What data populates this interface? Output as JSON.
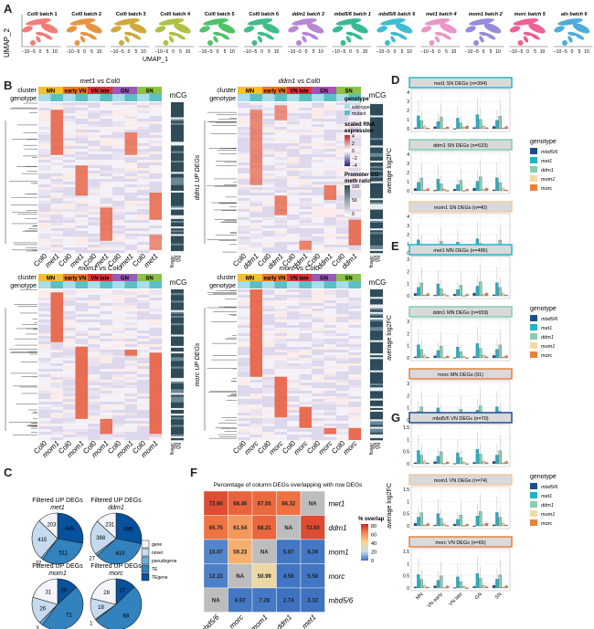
{
  "panels": {
    "A": "A",
    "B": "B",
    "C": "C",
    "D": "D",
    "E": "E",
    "F": "F",
    "G": "G"
  },
  "panelA": {
    "ylabel": "UMAP_2",
    "xlabel": "UMAP_1",
    "xticks": [
      "−10",
      "−5",
      "0",
      "5",
      "10"
    ],
    "facets": [
      {
        "label": "Col0 batch 1",
        "color": "#ef6f6c"
      },
      {
        "label": "Col0 batch 2",
        "color": "#e58a2c"
      },
      {
        "label": "Col0 batch 3",
        "color": "#c9a227"
      },
      {
        "label": "Col0 batch 4",
        "color": "#a6b930"
      },
      {
        "label": "Col0 batch 5",
        "color": "#3dbb5a"
      },
      {
        "label": "Col0 batch 6",
        "color": "#2eb57e"
      },
      {
        "label": "ddm1 batch 3",
        "color": "#b07ad0"
      },
      {
        "label": "mbd5/6 batch 1",
        "color": "#22b38a"
      },
      {
        "label": "mbd5/6 batch 6",
        "color": "#29b6cf"
      },
      {
        "label": "met1 batch 4",
        "color": "#e88cc0"
      },
      {
        "label": "mom1 batch 2",
        "color": "#8a7fd6"
      },
      {
        "label": "morc batch 5",
        "color": "#ec4f8a"
      },
      {
        "label": "aln batch 6",
        "color": "#3ba4d8"
      }
    ]
  },
  "panelB": {
    "cluster_label": "cluster",
    "genotype_label": "genotype",
    "mcg_label": "mCG",
    "clusters": [
      {
        "name": "MN",
        "color": "#f2c12e"
      },
      {
        "name": "early VN",
        "color": "#e87a2a"
      },
      {
        "name": "VN late",
        "color": "#e0323a"
      },
      {
        "name": "GN",
        "color": "#9b59b6"
      },
      {
        "name": "SN",
        "color": "#8bc34a"
      }
    ],
    "genotype_colors": {
      "wild": "#a8dde9",
      "mutant": "#5bbfc4"
    },
    "mcg_axis": [
      "flower",
      "SN",
      "VN"
    ],
    "heatmaps": [
      {
        "title_mut": "met1",
        "title_rest": " vs Col0",
        "ylabel": "met1 UP DEGs",
        "xlabels": [
          "Col0",
          "met1",
          "Col0",
          "met1",
          "Col0",
          "met1",
          "Col0",
          "met1",
          "Col0",
          "met1"
        ],
        "blocks": [
          [
            0.05,
            0.35,
            1,
            0.9
          ],
          [
            0.42,
            0.62,
            3,
            0.85
          ],
          [
            0.7,
            0.92,
            5,
            0.85
          ],
          [
            0.2,
            0.35,
            7,
            0.8
          ],
          [
            0.6,
            0.78,
            9,
            0.85
          ],
          [
            0.88,
            0.98,
            9,
            0.7
          ]
        ]
      },
      {
        "title_mut": "ddm1",
        "title_rest": " vs Col0",
        "ylabel": "ddm1 UP DEGs",
        "xlabels": [
          "Col0",
          "ddm1",
          "Col0",
          "ddm1",
          "Col0",
          "ddm1",
          "Col0",
          "ddm1",
          "Col0",
          "ddm1"
        ],
        "blocks": [
          [
            0.05,
            0.55,
            1,
            0.75
          ],
          [
            0.02,
            0.12,
            3,
            0.7
          ],
          [
            0.62,
            0.75,
            3,
            0.8
          ],
          [
            0.55,
            0.65,
            7,
            0.85
          ],
          [
            0.78,
            0.95,
            9,
            0.9
          ],
          [
            0.92,
            0.98,
            5,
            0.8
          ]
        ]
      },
      {
        "title_mut": "mom1",
        "title_rest": " vs Col0",
        "ylabel": "mom1 UP DEGs",
        "xlabels": [
          "Col0",
          "mom1",
          "Col0",
          "mom1",
          "Col0",
          "mom1",
          "Col0",
          "mom1",
          "Col0",
          "mom1"
        ],
        "blocks": [
          [
            0.02,
            0.35,
            1,
            0.95
          ],
          [
            0.38,
            0.86,
            3,
            0.95
          ],
          [
            0.4,
            0.44,
            7,
            0.9
          ],
          [
            0.42,
            0.96,
            9,
            0.95
          ],
          [
            0.86,
            0.96,
            5,
            0.9
          ]
        ]
      },
      {
        "title_mut": "morc",
        "title_rest": " vs Col0",
        "ylabel": "morc UP DEGs",
        "xlabels": [
          "Col0",
          "morc",
          "Col0",
          "morc",
          "Col0",
          "morc",
          "Col0",
          "morc",
          "Col0",
          "morc"
        ],
        "blocks": [
          [
            0.0,
            0.58,
            1,
            0.95
          ],
          [
            0.58,
            0.85,
            3,
            0.95
          ],
          [
            0.78,
            0.92,
            5,
            0.95
          ],
          [
            0.92,
            0.96,
            7,
            0.9
          ],
          [
            0.92,
            1.0,
            9,
            0.95
          ]
        ]
      }
    ]
  },
  "legendB": {
    "genotype_title": "genotype",
    "wild": "wild-type",
    "mutant": "mutant",
    "expr_title_1": "scaled RNA",
    "expr_title_2": "expression",
    "expr_ticks": [
      "4",
      "2",
      "0",
      "−2",
      "−4"
    ],
    "meth_title_1": "Promoter CG",
    "meth_title_2": "meth ratio",
    "meth_ticks": [
      "100",
      "50",
      "0"
    ]
  },
  "panelC": {
    "legend": [
      {
        "label": "gene",
        "color": "#f3f5fb"
      },
      {
        "label": "novel",
        "color": "#c6dbef"
      },
      {
        "label": "pseudogene",
        "color": "#6baed6"
      },
      {
        "label": "TE",
        "color": "#3182bd"
      },
      {
        "label": "TEgene",
        "color": "#08519c"
      }
    ],
    "pies": [
      {
        "title": "Filtered UP DEGs",
        "genotype": "met1",
        "values": {
          "TEgene": 445,
          "TE": 511,
          "pseudogene": 22,
          "novel": 415,
          "gene": 203
        }
      },
      {
        "title": "Filtered UP DEGs",
        "genotype": "ddm1",
        "values": {
          "TEgene": 495,
          "TE": 619,
          "pseudogene": 27,
          "novel": 388,
          "gene": 231
        }
      },
      {
        "title": "Filtered UP DEGs",
        "genotype": "mom1",
        "values": {
          "TEgene": 20,
          "TE": 71,
          "pseudogene": 3,
          "novel": 26,
          "gene": 31
        }
      },
      {
        "title": "Filtered UP DEGs",
        "genotype": "morc",
        "values": {
          "TEgene": 17,
          "TE": 68,
          "pseudogene": 1,
          "novel": 18,
          "gene": 28
        }
      }
    ]
  },
  "chart_data": [
    {
      "type": "heatmap",
      "title": "Percentage of column DEGs overlapping with row DEGs",
      "rows": [
        "met1",
        "ddm1",
        "mom1",
        "morc",
        "mbd5/6"
      ],
      "columns": [
        "mbd5/6",
        "morc",
        "mom1",
        "ddm1",
        "met1"
      ],
      "values": [
        [
          72.6,
          68.46,
          67.55,
          66.32,
          null
        ],
        [
          65.75,
          61.54,
          68.21,
          null,
          72.93
        ],
        [
          15.07,
          59.23,
          null,
          5.87,
          6.39
        ],
        [
          12.33,
          null,
          50.99,
          4.56,
          5.58
        ],
        [
          null,
          6.92,
          7.28,
          2.74,
          3.32
        ]
      ],
      "na_label": "NA",
      "legend_title": "% overlap",
      "legend_ticks": [
        80,
        60,
        40,
        20,
        0
      ],
      "range": [
        0,
        80
      ]
    },
    {
      "type": "box",
      "panel": "D",
      "ylabel": "average log2FC",
      "categories": [
        "MN",
        "VN early",
        "VN late",
        "GN",
        "SN"
      ],
      "facets": [
        {
          "title": "met1 SN DEGs (n=394)",
          "border": "#29b6cf",
          "ylim": [
            0,
            4
          ],
          "yticks": [
            0,
            1,
            2,
            3,
            4
          ]
        },
        {
          "title": "ddm1 SN DEGs (n=633)",
          "border": "#7fcfb0",
          "ylim": [
            0,
            4
          ],
          "yticks": [
            0,
            1,
            2,
            3,
            4
          ]
        },
        {
          "title": "mom1 SN DEGs (n=40)",
          "border": "#f3c99a",
          "ylim": [
            0,
            4
          ],
          "yticks": [
            0,
            1,
            2,
            3,
            4
          ]
        }
      ]
    },
    {
      "type": "box",
      "panel": "E",
      "ylabel": "average log2FC",
      "categories": [
        "MN",
        "VN early",
        "VN late",
        "GN",
        "SN"
      ],
      "facets": [
        {
          "title": "met1 MN DEGs (n=486)",
          "border": "#29b6cf",
          "ylim": [
            0,
            3
          ],
          "yticks": [
            0,
            1,
            2,
            3
          ]
        },
        {
          "title": "ddm1 MN DEGs (n=659)",
          "border": "#7fcfb0",
          "ylim": [
            0,
            3
          ],
          "yticks": [
            0,
            1,
            2,
            3
          ]
        },
        {
          "title": "morc MN DEGs (91)",
          "border": "#e8823a",
          "ylim": [
            0,
            3
          ],
          "yticks": [
            0,
            1,
            2,
            3
          ]
        }
      ]
    },
    {
      "type": "box",
      "panel": "G",
      "ylabel": "average log2FC",
      "categories": [
        "MN",
        "VN early",
        "VN late",
        "GN",
        "SN"
      ],
      "facets": [
        {
          "title": "mbd5/6 VN DEGs (n=70)",
          "border": "#1f4e8c",
          "ylim": [
            0,
            1.5
          ],
          "yticks": [
            0.0,
            0.5,
            1.0,
            1.5
          ]
        },
        {
          "title": "mom1 VN DEGs (n=74)",
          "border": "#f3c99a",
          "ylim": [
            0,
            1.5
          ],
          "yticks": [
            0.0,
            0.5,
            1.0,
            1.5
          ]
        },
        {
          "title": "morc VN DEGs (n=65)",
          "border": "#e8823a",
          "ylim": [
            0,
            1.5
          ],
          "yticks": [
            0.0,
            0.5,
            1.0,
            1.5
          ]
        }
      ]
    }
  ],
  "genotypeLegend": {
    "title": "genotype",
    "items": [
      {
        "label": "mbd5/6",
        "color": "#1f4e8c"
      },
      {
        "label": "met1",
        "color": "#1fb3c8"
      },
      {
        "label": "ddm1",
        "color": "#86ceb0"
      },
      {
        "label": "mom1",
        "color": "#f5d9a8"
      },
      {
        "label": "morc",
        "color": "#e8823a"
      }
    ]
  }
}
